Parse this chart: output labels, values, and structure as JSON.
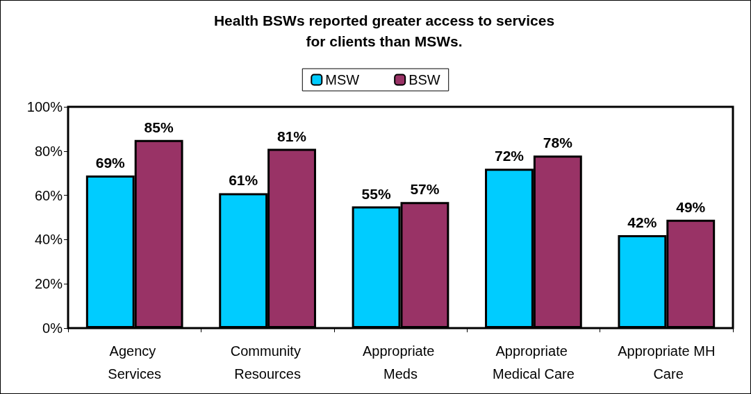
{
  "chart_data": {
    "type": "bar",
    "title": "Health BSWs reported greater access to services\nfor clients than MSWs.",
    "categories": [
      "Agency Services",
      "Community Resources",
      "Appropriate Meds",
      "Appropriate Medical Care",
      "Appropriate MH Care"
    ],
    "series": [
      {
        "name": "MSW",
        "color": "#00ccff",
        "values": [
          69,
          61,
          55,
          72,
          42
        ],
        "value_labels": [
          "69%",
          "61%",
          "55%",
          "72%",
          "42%"
        ]
      },
      {
        "name": "BSW",
        "color": "#993366",
        "values": [
          85,
          81,
          57,
          78,
          49
        ],
        "value_labels": [
          "85%",
          "81%",
          "57%",
          "78%",
          "49%"
        ]
      }
    ],
    "ylim": [
      0,
      100
    ],
    "yticks": [
      {
        "value": 0,
        "label": "0%"
      },
      {
        "value": 20,
        "label": "20%"
      },
      {
        "value": 40,
        "label": "40%"
      },
      {
        "value": 60,
        "label": "60%"
      },
      {
        "value": 80,
        "label": "80%"
      },
      {
        "value": 100,
        "label": "100%"
      }
    ],
    "grid": false,
    "legend": "top"
  }
}
